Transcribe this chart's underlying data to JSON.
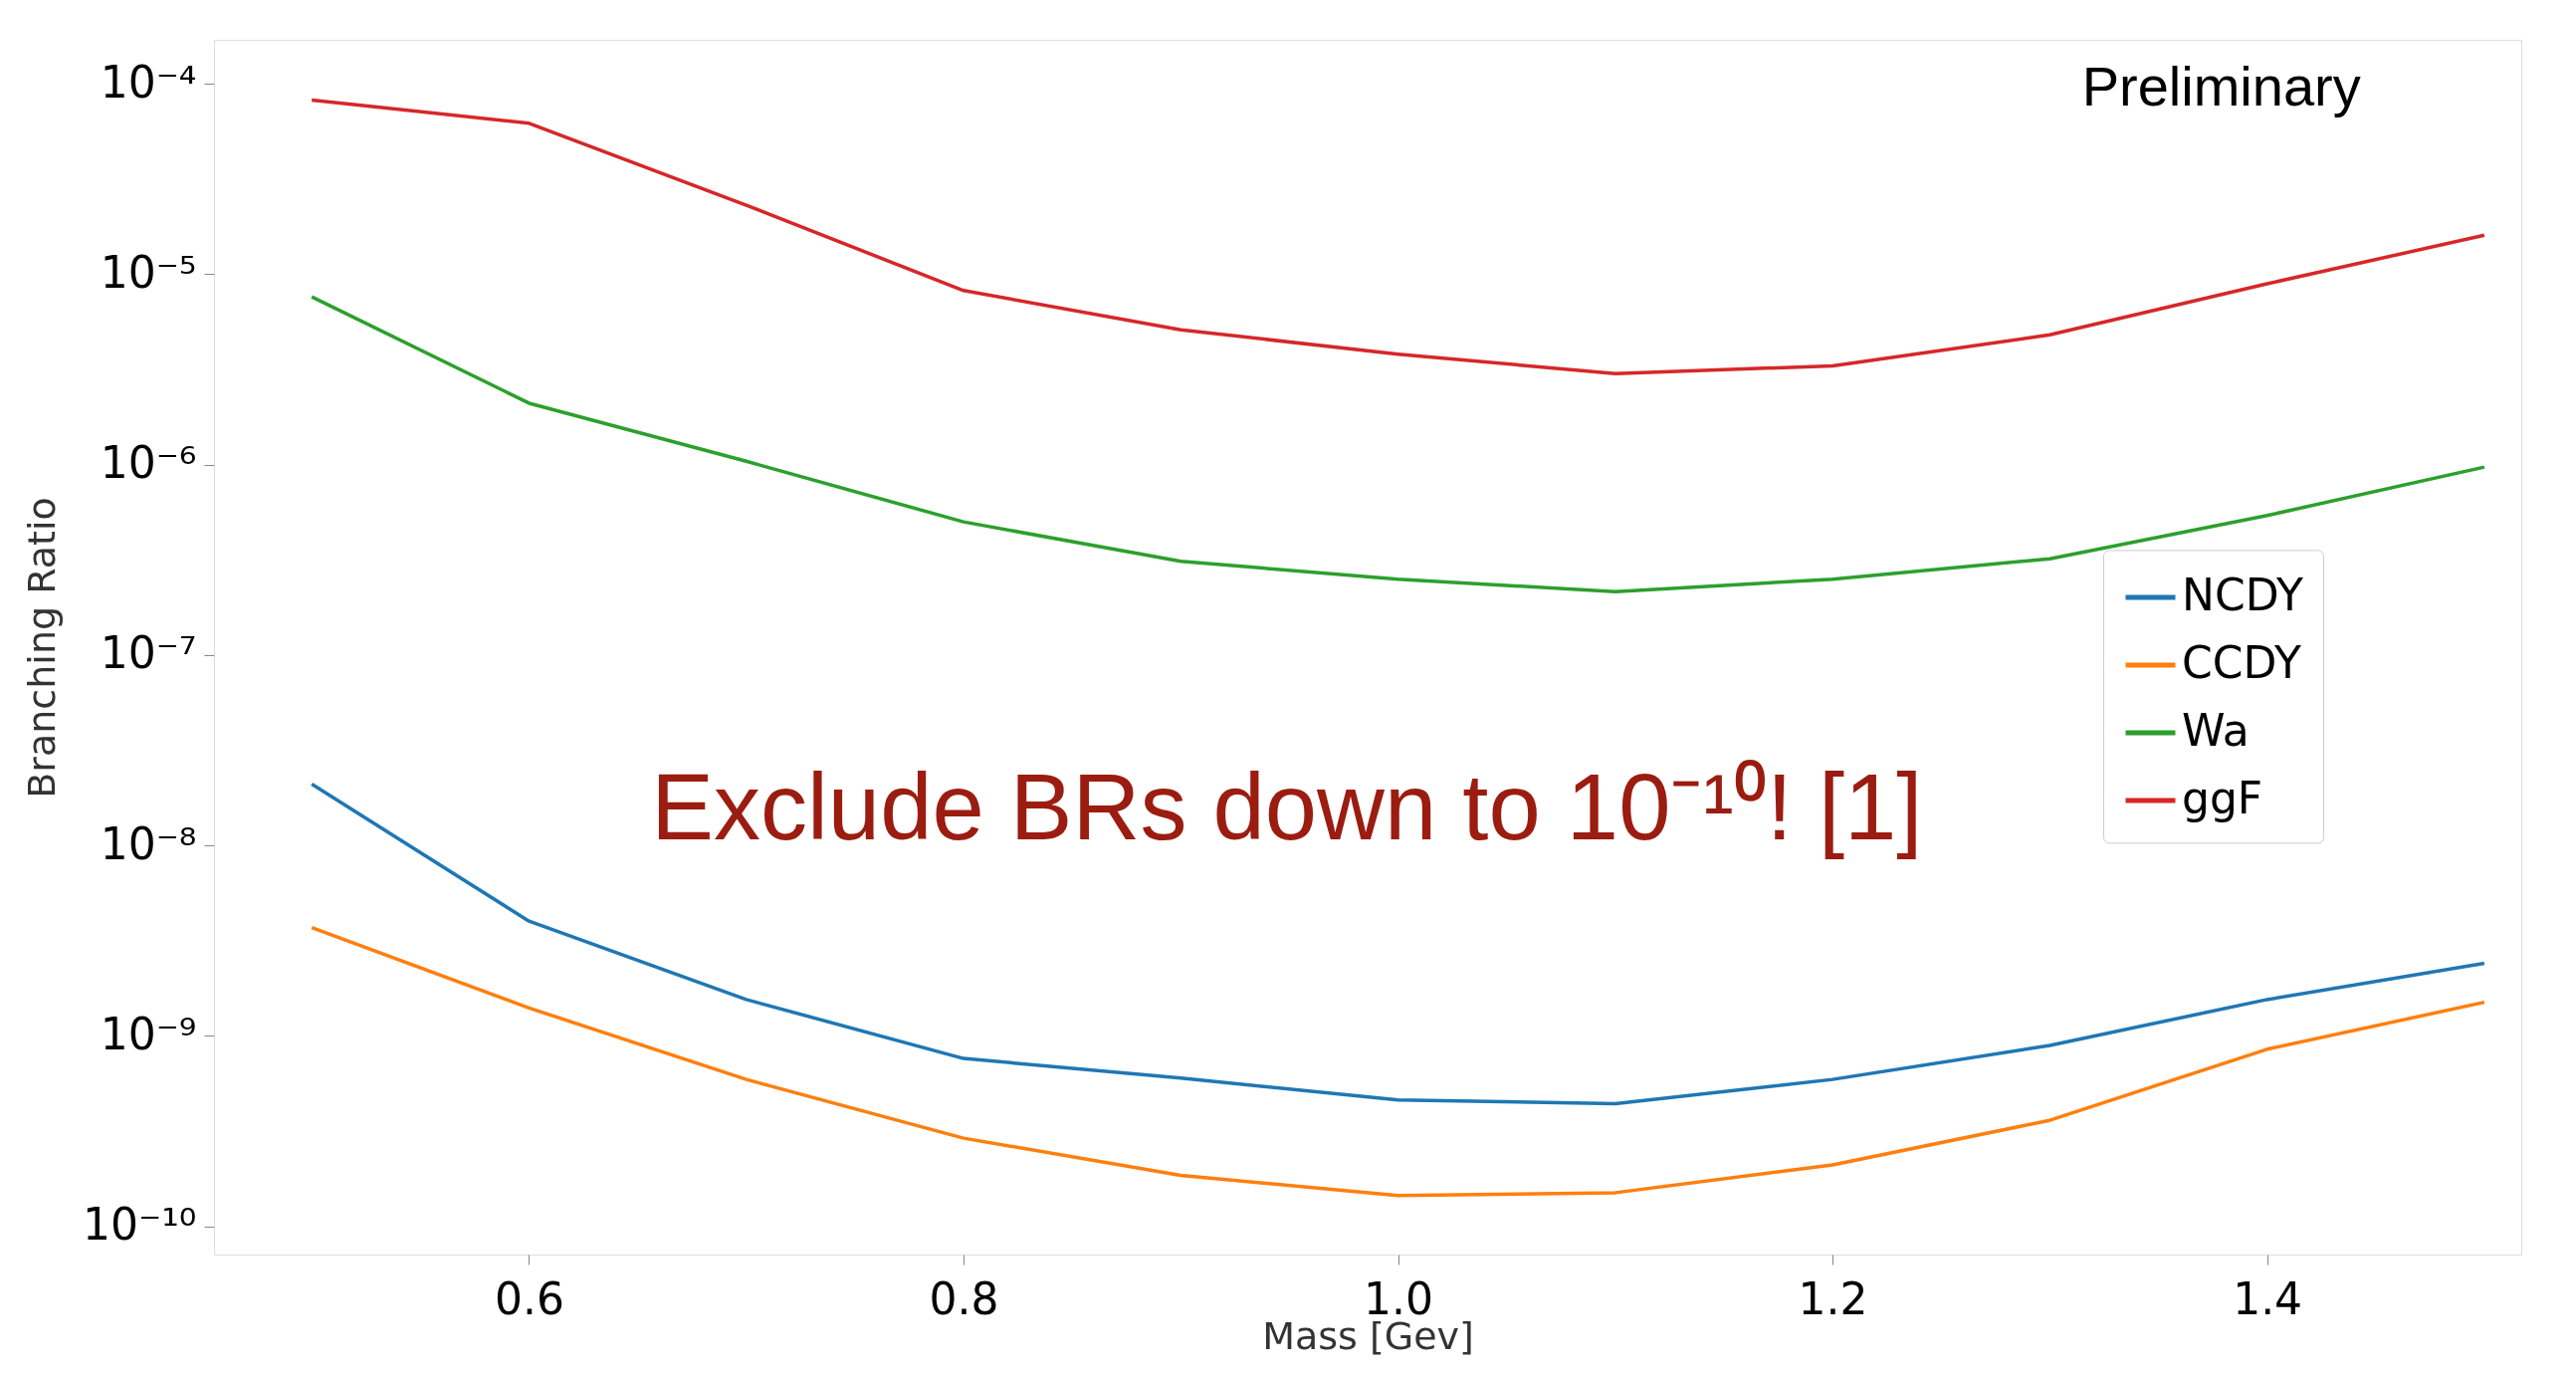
{
  "chart_data": {
    "type": "line",
    "xlabel": "Mass [Gev]",
    "ylabel": "Branching Ratio",
    "log": "y",
    "grid": false,
    "legend": "right",
    "marker": "none",
    "line_style": "solid",
    "x": [
      0.5,
      0.6,
      0.7,
      0.8,
      0.9,
      1.0,
      1.1,
      1.2,
      1.3,
      1.4,
      1.5
    ],
    "series": [
      {
        "name": "NCDY",
        "color": "#1f77b4",
        "values": [
          2.1e-08,
          4e-09,
          1.55e-09,
          7.6e-10,
          6e-10,
          4.6e-10,
          4.4e-10,
          5.9e-10,
          8.9e-10,
          1.55e-09,
          2.4e-09
        ]
      },
      {
        "name": "CCDY",
        "color": "#ff7f0e",
        "values": [
          3.7e-09,
          1.4e-09,
          5.9e-10,
          2.9e-10,
          1.85e-10,
          1.45e-10,
          1.5e-10,
          2.1e-10,
          3.6e-10,
          8.5e-10,
          1.5e-09
        ]
      },
      {
        "name": "Wa",
        "color": "#2ca02c",
        "values": [
          7.6e-06,
          2.1e-06,
          1.04e-06,
          5e-07,
          3.1e-07,
          2.5e-07,
          2.15e-07,
          2.5e-07,
          3.2e-07,
          5.4e-07,
          9.7e-07
        ]
      },
      {
        "name": "ggF",
        "color": "#d62728",
        "values": [
          8.2e-05,
          6.2e-05,
          2.3e-05,
          8.2e-06,
          5.1e-06,
          3.8e-06,
          3e-06,
          3.3e-06,
          4.8e-06,
          8.9e-06,
          1.6e-05
        ]
      }
    ],
    "xlim": [
      0.455,
      1.517
    ],
    "ylim": [
      7.1e-11,
      0.00017
    ],
    "xticks": [
      0.6,
      0.8,
      {
        "value": 1.0,
        "label": "1.0"
      },
      1.2,
      1.4
    ],
    "yticks": [
      {
        "value": 1e-10,
        "label": "10⁻¹⁰"
      },
      {
        "value": 1e-09,
        "label": "10⁻⁹"
      },
      {
        "value": 1e-08,
        "label": "10⁻⁸"
      },
      {
        "value": 1e-07,
        "label": "10⁻⁷"
      },
      {
        "value": 1e-06,
        "label": "10⁻⁶"
      },
      {
        "value": 1e-05,
        "label": "10⁻⁵"
      },
      {
        "value": 0.0001,
        "label": "10⁻⁴"
      }
    ],
    "annotations": [
      "Preliminary",
      "Exclude BRs down to 10⁻¹⁰! [1]"
    ]
  }
}
